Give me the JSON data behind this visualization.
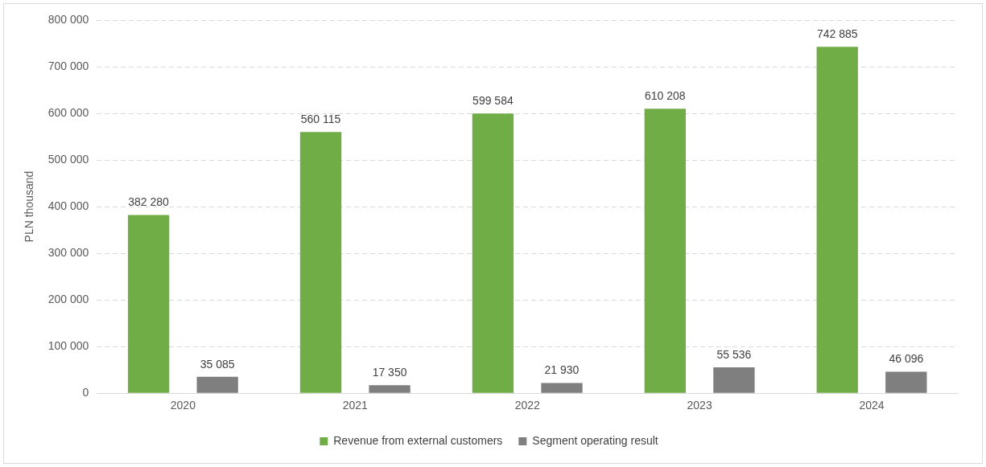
{
  "chart_data": {
    "type": "bar",
    "ylabel": "PLN thousand",
    "categories": [
      "2020",
      "2021",
      "2022",
      "2023",
      "2024"
    ],
    "series": [
      {
        "name": "Revenue from external customers",
        "color": "#70ad47",
        "values": [
          382280,
          560115,
          599584,
          610208,
          742885
        ],
        "value_labels": [
          "382 280",
          "560 115",
          "599 584",
          "610 208",
          "742 885"
        ]
      },
      {
        "name": "Segment operating result",
        "color": "#7f7f7f",
        "values": [
          35085,
          17350,
          21930,
          55536,
          46096
        ],
        "value_labels": [
          "35 085",
          "17 350",
          "21 930",
          "55 536",
          "46 096"
        ]
      }
    ],
    "ylim": [
      0,
      800000
    ],
    "yticks": [
      {
        "value": 0,
        "label": "0"
      },
      {
        "value": 100000,
        "label": "100 000"
      },
      {
        "value": 200000,
        "label": "200 000"
      },
      {
        "value": 300000,
        "label": "300 000"
      },
      {
        "value": 400000,
        "label": "400 000"
      },
      {
        "value": 500000,
        "label": "500 000"
      },
      {
        "value": 600000,
        "label": "600 000"
      },
      {
        "value": 700000,
        "label": "700 000"
      },
      {
        "value": 800000,
        "label": "800 000"
      }
    ],
    "grid": "y",
    "legend": "bottom"
  }
}
